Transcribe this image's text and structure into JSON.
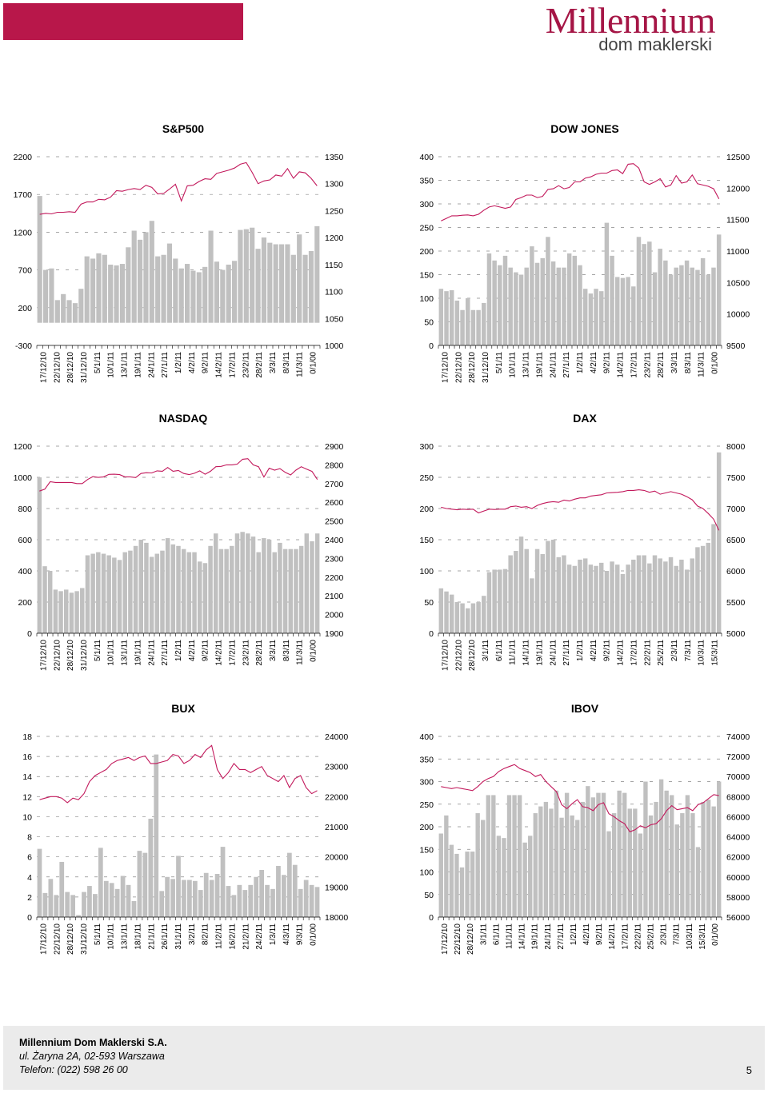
{
  "brand": {
    "top": "Millennium",
    "bottom": "dom maklerski"
  },
  "colors": {
    "bar": "#c0c0c0",
    "line": "#c2185b",
    "brand": "#b8174a",
    "grid": "#888888"
  },
  "chart_data": [
    {
      "id": "sp500",
      "type": "bar+line",
      "title": "S&P500",
      "left_axis": {
        "ticks": [
          2200,
          1700,
          1200,
          700,
          200,
          -300
        ],
        "min": -300,
        "max": 2200
      },
      "right_axis": {
        "ticks": [
          1350,
          1300,
          1250,
          1200,
          1150,
          1100,
          1050,
          1000
        ],
        "min": 1000,
        "max": 1350
      },
      "x_labels": [
        "17/12/10",
        "22/12/10",
        "28/12/10",
        "31/12/10",
        "5/1/11",
        "10/1/11",
        "13/1/11",
        "19/1/11",
        "24/1/11",
        "27/1/11",
        "1/2/11",
        "4/2/11",
        "9/2/11",
        "14/2/11",
        "17/2/11",
        "23/2/11",
        "28/2/11",
        "3/3/11",
        "8/3/11",
        "11/3/11",
        "0/1/00"
      ],
      "bars": [
        1680,
        700,
        720,
        300,
        380,
        300,
        260,
        450,
        880,
        850,
        920,
        900,
        770,
        760,
        780,
        1000,
        1220,
        1100,
        1200,
        1350,
        880,
        900,
        1050,
        850,
        720,
        780,
        690,
        670,
        740,
        1220,
        810,
        700,
        770,
        820,
        1230,
        1240,
        1260,
        980,
        1130,
        1060,
        1040,
        1040,
        1040,
        900,
        1170,
        900,
        950,
        1280
      ],
      "line": [
        1243,
        1245,
        1244,
        1247,
        1247,
        1248,
        1247,
        1262,
        1266,
        1266,
        1271,
        1270,
        1275,
        1287,
        1286,
        1289,
        1291,
        1289,
        1297,
        1293,
        1281,
        1282,
        1290,
        1299,
        1268,
        1296,
        1297,
        1304,
        1309,
        1308,
        1319,
        1322,
        1325,
        1329,
        1336,
        1339,
        1321,
        1300,
        1305,
        1307,
        1316,
        1314,
        1328,
        1310,
        1322,
        1320,
        1310,
        1296
      ]
    },
    {
      "id": "dowjones",
      "type": "bar+line",
      "title": "DOW JONES",
      "left_axis": {
        "ticks": [
          400,
          350,
          300,
          250,
          200,
          150,
          100,
          50,
          0
        ],
        "min": 0,
        "max": 400
      },
      "right_axis": {
        "ticks": [
          12500,
          12000,
          11500,
          11000,
          10500,
          10000,
          9500
        ],
        "min": 9500,
        "max": 12500
      },
      "x_labels": [
        "17/12/10",
        "22/12/10",
        "28/12/10",
        "31/12/10",
        "5/1/11",
        "10/1/11",
        "13/1/11",
        "19/1/11",
        "24/1/11",
        "27/1/11",
        "1/2/11",
        "4/2/11",
        "9/2/11",
        "14/2/11",
        "17/2/11",
        "23/2/11",
        "28/2/11",
        "3/3/11",
        "8/3/11",
        "11/3/11",
        "0/1/00"
      ],
      "bars": [
        120,
        115,
        117,
        95,
        75,
        100,
        75,
        75,
        90,
        195,
        180,
        170,
        190,
        165,
        155,
        150,
        165,
        210,
        175,
        185,
        230,
        178,
        165,
        165,
        195,
        190,
        170,
        120,
        110,
        120,
        115,
        260,
        190,
        145,
        143,
        145,
        125,
        230,
        215,
        220,
        155,
        205,
        180,
        150,
        165,
        170,
        180,
        165,
        160,
        185,
        150,
        165,
        235
      ],
      "line": [
        11480,
        11520,
        11560,
        11560,
        11570,
        11575,
        11560,
        11585,
        11650,
        11700,
        11720,
        11700,
        11680,
        11700,
        11820,
        11850,
        11890,
        11890,
        11850,
        11870,
        11980,
        11990,
        12040,
        11990,
        12010,
        12100,
        12100,
        12160,
        12180,
        12220,
        12240,
        12240,
        12280,
        12290,
        12230,
        12380,
        12390,
        12320,
        12100,
        12060,
        12100,
        12150,
        12020,
        12050,
        12200,
        12080,
        12100,
        12210,
        12070,
        12050,
        12030,
        11990,
        11830
      ]
    },
    {
      "id": "nasdaq",
      "type": "bar+line",
      "title": "NASDAQ",
      "left_axis": {
        "ticks": [
          1200,
          1000,
          800,
          600,
          400,
          200,
          0
        ],
        "min": 0,
        "max": 1200
      },
      "right_axis": {
        "ticks": [
          2900,
          2800,
          2700,
          2600,
          2500,
          2400,
          2300,
          2200,
          2100,
          2000,
          1900
        ],
        "min": 1900,
        "max": 2900
      },
      "x_labels": [
        "17/12/10",
        "22/12/10",
        "28/12/10",
        "31/12/10",
        "5/1/11",
        "10/1/11",
        "13/1/11",
        "19/1/11",
        "24/1/11",
        "27/1/11",
        "1/2/11",
        "4/2/11",
        "9/2/11",
        "14/2/11",
        "17/2/11",
        "23/2/11",
        "28/2/11",
        "3/3/11",
        "8/3/11",
        "11/3/11",
        "0/1/00"
      ],
      "bars": [
        1000,
        430,
        400,
        280,
        270,
        280,
        260,
        270,
        290,
        500,
        510,
        520,
        510,
        500,
        485,
        470,
        520,
        530,
        560,
        600,
        580,
        490,
        510,
        530,
        610,
        570,
        560,
        540,
        520,
        520,
        460,
        450,
        560,
        640,
        540,
        540,
        560,
        640,
        650,
        640,
        620,
        520,
        610,
        600,
        520,
        580,
        540,
        540,
        540,
        560,
        640,
        590,
        640
      ],
      "line": [
        2660,
        2670,
        2710,
        2706,
        2706,
        2706,
        2706,
        2700,
        2700,
        2722,
        2737,
        2733,
        2736,
        2749,
        2750,
        2748,
        2736,
        2736,
        2732,
        2754,
        2758,
        2757,
        2768,
        2766,
        2786,
        2766,
        2770,
        2754,
        2748,
        2755,
        2768,
        2750,
        2766,
        2790,
        2792,
        2800,
        2800,
        2804,
        2830,
        2833,
        2800,
        2790,
        2735,
        2782,
        2772,
        2780,
        2760,
        2746,
        2772,
        2790,
        2777,
        2765,
        2722
      ]
    },
    {
      "id": "dax",
      "type": "bar+line",
      "title": "DAX",
      "left_axis": {
        "ticks": [
          300,
          250,
          200,
          150,
          100,
          50,
          0
        ],
        "min": 0,
        "max": 300
      },
      "right_axis": {
        "ticks": [
          8000,
          7500,
          7000,
          6500,
          6000,
          5500,
          5000
        ],
        "min": 5000,
        "max": 8000
      },
      "x_labels": [
        "17/12/10",
        "22/12/10",
        "28/12/10",
        "3/1/11",
        "6/1/11",
        "11/1/11",
        "14/1/11",
        "19/1/11",
        "24/1/11",
        "27/1/11",
        "1/2/11",
        "4/2/11",
        "9/2/11",
        "14/2/11",
        "17/2/11",
        "22/2/11",
        "25/2/11",
        "2/3/11",
        "7/3/11",
        "10/3/11",
        "15/3/11"
      ],
      "bars": [
        72,
        67,
        62,
        50,
        48,
        40,
        48,
        50,
        60,
        98,
        102,
        102,
        103,
        125,
        132,
        155,
        135,
        88,
        135,
        127,
        148,
        150,
        122,
        125,
        110,
        108,
        118,
        120,
        110,
        108,
        113,
        100,
        115,
        110,
        95,
        110,
        118,
        125,
        125,
        112,
        125,
        120,
        115,
        122,
        108,
        118,
        102,
        120,
        138,
        140,
        145,
        175,
        290
      ],
      "line": [
        7020,
        7000,
        6990,
        6980,
        6990,
        6985,
        6990,
        6930,
        6960,
        6990,
        6985,
        6990,
        6990,
        7030,
        7040,
        7020,
        7030,
        7000,
        7050,
        7080,
        7100,
        7110,
        7100,
        7135,
        7120,
        7150,
        7170,
        7170,
        7200,
        7210,
        7220,
        7250,
        7255,
        7260,
        7270,
        7290,
        7290,
        7300,
        7290,
        7260,
        7280,
        7230,
        7250,
        7270,
        7250,
        7230,
        7190,
        7140,
        7040,
        7000,
        6920,
        6830,
        6650
      ]
    },
    {
      "id": "bux",
      "type": "bar+line",
      "title": "BUX",
      "left_axis": {
        "ticks": [
          18,
          16,
          14,
          12,
          10,
          8,
          6,
          4,
          2,
          0
        ],
        "min": 0,
        "max": 18
      },
      "right_axis": {
        "ticks": [
          24000,
          23000,
          22000,
          21000,
          20000,
          19000,
          18000
        ],
        "min": 18000,
        "max": 24000
      },
      "x_labels": [
        "17/12/10",
        "22/12/10",
        "28/12/10",
        "31/12/10",
        "5/1/11",
        "10/1/11",
        "13/1/11",
        "18/1/11",
        "21/1/11",
        "26/1/11",
        "31/1/11",
        "3/2/11",
        "8/2/11",
        "11/2/11",
        "16/2/11",
        "21/2/11",
        "24/2/11",
        "1/3/11",
        "4/3/11",
        "9/3/11",
        "0/1/00"
      ],
      "bars": [
        6.8,
        2.4,
        3.8,
        2.2,
        5.5,
        2.5,
        2.2,
        0.2,
        2.5,
        3.1,
        2.3,
        6.9,
        3.6,
        3.4,
        2.8,
        4.1,
        3.2,
        1.6,
        6.6,
        6.4,
        9.8,
        16.2,
        2.6,
        4.0,
        3.8,
        6.1,
        3.7,
        3.7,
        3.6,
        2.7,
        4.4,
        3.7,
        4.3,
        7.0,
        3.1,
        2.2,
        3.2,
        2.7,
        3.2,
        4.0,
        4.7,
        3.2,
        2.8,
        5.1,
        4.2,
        6.4,
        5.2,
        2.8,
        3.7,
        3.2,
        3.0
      ],
      "line": [
        21900,
        21950,
        22000,
        22000,
        21950,
        21800,
        21950,
        21900,
        22100,
        22500,
        22700,
        22800,
        22900,
        23100,
        23200,
        23250,
        23300,
        23200,
        23300,
        23350,
        23100,
        23100,
        23150,
        23200,
        23400,
        23350,
        23100,
        23200,
        23400,
        23300,
        23550,
        23700,
        22900,
        22600,
        22800,
        23100,
        22900,
        22900,
        22800,
        22900,
        23000,
        22700,
        22600,
        22500,
        22700,
        22300,
        22600,
        22700,
        22300,
        22100,
        22200
      ]
    },
    {
      "id": "ibov",
      "type": "bar+line",
      "title": "IBOV",
      "left_axis": {
        "ticks": [
          400,
          350,
          300,
          250,
          200,
          150,
          100,
          50,
          0
        ],
        "min": 0,
        "max": 400
      },
      "right_axis": {
        "ticks": [
          74000,
          72000,
          70000,
          68000,
          66000,
          64000,
          62000,
          60000,
          58000,
          56000
        ],
        "min": 56000,
        "max": 74000
      },
      "x_labels": [
        "17/12/10",
        "22/12/10",
        "28/12/10",
        "3/1/11",
        "6/1/11",
        "11/1/11",
        "14/1/11",
        "19/1/11",
        "24/1/11",
        "27/1/11",
        "1/2/11",
        "4/2/11",
        "9/2/11",
        "14/2/11",
        "17/2/11",
        "22/2/11",
        "25/2/11",
        "2/3/11",
        "7/3/11",
        "10/3/11",
        "15/3/11",
        "0/1/00"
      ],
      "bars": [
        185,
        225,
        160,
        140,
        110,
        145,
        145,
        230,
        215,
        270,
        270,
        180,
        175,
        270,
        270,
        270,
        165,
        180,
        230,
        245,
        255,
        240,
        280,
        220,
        275,
        225,
        215,
        255,
        290,
        265,
        275,
        275,
        190,
        230,
        280,
        275,
        240,
        240,
        185,
        300,
        225,
        255,
        305,
        280,
        270,
        205,
        230,
        270,
        230,
        155,
        255,
        260,
        245,
        300
      ],
      "line": [
        69000,
        68900,
        68800,
        68900,
        68800,
        68700,
        68600,
        69000,
        69500,
        69800,
        70000,
        70500,
        70800,
        71000,
        71200,
        70800,
        70600,
        70400,
        70000,
        70200,
        69500,
        69000,
        68500,
        67200,
        66800,
        67300,
        67700,
        67000,
        66900,
        66600,
        67200,
        67400,
        66300,
        66000,
        65600,
        65300,
        64500,
        64700,
        65100,
        64900,
        65200,
        65300,
        65800,
        66600,
        67100,
        66700,
        66800,
        66900,
        66600,
        67200,
        67400,
        67800,
        68200,
        68100
      ]
    }
  ],
  "footer": {
    "company": "Millennium Dom Maklerski S.A.",
    "address": "ul. Żaryna 2A, 02-593 Warszawa",
    "phone": "Telefon: (022) 598 26 00",
    "page": "5"
  }
}
